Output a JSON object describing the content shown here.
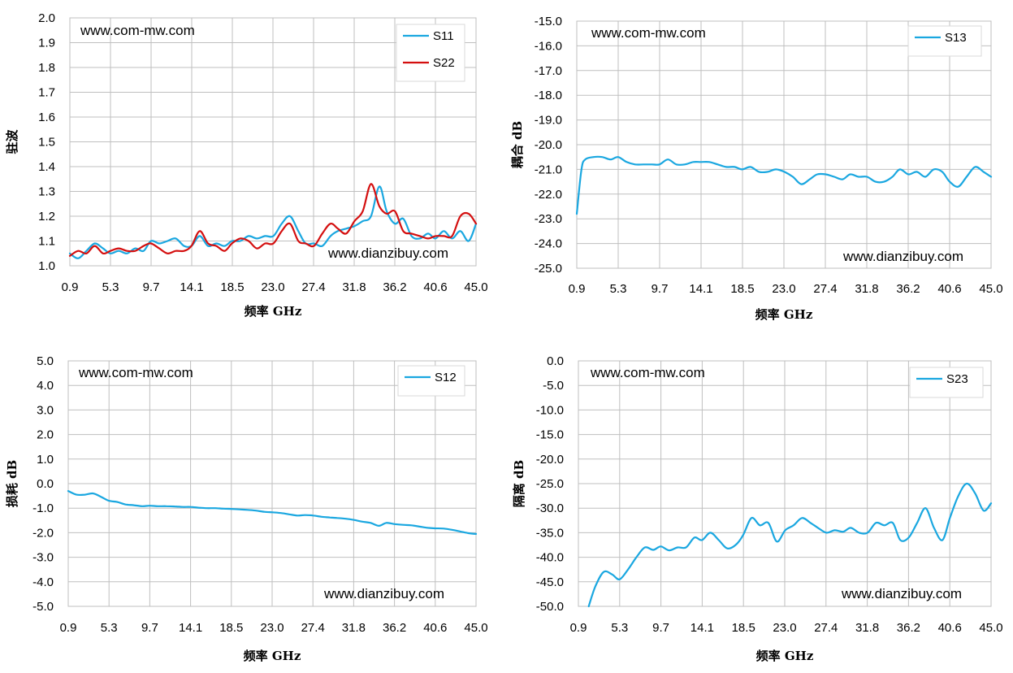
{
  "colors": {
    "blue": "#1aa7e0",
    "red": "#d40f0f",
    "grid": "#bfbfbf"
  },
  "chart_data": [
    {
      "id": "vswr",
      "type": "line",
      "title": "",
      "xlabel": "频率 GHz",
      "ylabel": "驻波",
      "xlim": [
        0.9,
        45.0
      ],
      "ylim": [
        1.0,
        2.0
      ],
      "x_ticks": [
        "0.9",
        "5.3",
        "9.7",
        "14.1",
        "18.5",
        "23.0",
        "27.4",
        "31.8",
        "36.2",
        "40.6",
        "45.0"
      ],
      "y_ticks": [
        "2.0",
        "1.9",
        "1.8",
        "1.7",
        "1.6",
        "1.5",
        "1.4",
        "1.3",
        "1.2",
        "1.1",
        "1.0"
      ],
      "watermark_top": "www.com-mw.com",
      "watermark_bottom": "www.dianzibuy.com",
      "legend": "top-right",
      "series": [
        {
          "name": "S11",
          "color": "#1aa7e0",
          "x": [
            0.9,
            1.8,
            2.7,
            3.6,
            4.5,
            5.3,
            6.2,
            7.1,
            8.0,
            8.9,
            9.7,
            10.6,
            11.5,
            12.4,
            13.3,
            14.1,
            15.0,
            15.9,
            16.8,
            17.7,
            18.5,
            19.4,
            20.3,
            21.2,
            22.1,
            23.0,
            23.9,
            24.8,
            25.7,
            26.5,
            27.4,
            28.3,
            29.2,
            30.0,
            30.9,
            31.8,
            32.7,
            33.6,
            34.5,
            35.3,
            36.2,
            37.1,
            38.0,
            38.9,
            39.8,
            40.6,
            41.5,
            42.4,
            43.3,
            44.2,
            45.0
          ],
          "y": [
            1.05,
            1.03,
            1.06,
            1.09,
            1.07,
            1.05,
            1.06,
            1.05,
            1.07,
            1.06,
            1.1,
            1.09,
            1.1,
            1.11,
            1.08,
            1.08,
            1.12,
            1.08,
            1.09,
            1.08,
            1.1,
            1.1,
            1.12,
            1.11,
            1.12,
            1.12,
            1.17,
            1.2,
            1.14,
            1.09,
            1.09,
            1.08,
            1.12,
            1.14,
            1.15,
            1.16,
            1.18,
            1.2,
            1.32,
            1.22,
            1.17,
            1.19,
            1.12,
            1.11,
            1.13,
            1.11,
            1.14,
            1.11,
            1.14,
            1.1,
            1.17
          ]
        },
        {
          "name": "S22",
          "color": "#d40f0f",
          "x": [
            0.9,
            1.8,
            2.7,
            3.6,
            4.5,
            5.3,
            6.2,
            7.1,
            8.0,
            8.9,
            9.7,
            10.6,
            11.5,
            12.4,
            13.3,
            14.1,
            15.0,
            15.9,
            16.8,
            17.7,
            18.5,
            19.4,
            20.3,
            21.2,
            22.1,
            23.0,
            23.9,
            24.8,
            25.7,
            26.5,
            27.4,
            28.3,
            29.2,
            30.0,
            30.9,
            31.8,
            32.7,
            33.6,
            34.5,
            35.3,
            36.2,
            37.1,
            38.0,
            38.9,
            39.8,
            40.6,
            41.5,
            42.4,
            43.3,
            44.2,
            45.0
          ],
          "y": [
            1.04,
            1.06,
            1.05,
            1.08,
            1.05,
            1.06,
            1.07,
            1.06,
            1.06,
            1.08,
            1.09,
            1.07,
            1.05,
            1.06,
            1.06,
            1.08,
            1.14,
            1.09,
            1.08,
            1.06,
            1.09,
            1.11,
            1.1,
            1.07,
            1.09,
            1.09,
            1.14,
            1.17,
            1.1,
            1.09,
            1.08,
            1.13,
            1.17,
            1.15,
            1.13,
            1.18,
            1.22,
            1.33,
            1.24,
            1.21,
            1.22,
            1.14,
            1.13,
            1.12,
            1.11,
            1.12,
            1.12,
            1.12,
            1.2,
            1.21,
            1.17
          ]
        }
      ]
    },
    {
      "id": "coupling",
      "type": "line",
      "title": "",
      "xlabel": "频率 GHz",
      "ylabel": "耦合 dB",
      "xlim": [
        0.9,
        45.0
      ],
      "ylim": [
        -25.0,
        -15.0
      ],
      "x_ticks": [
        "0.9",
        "5.3",
        "9.7",
        "14.1",
        "18.5",
        "23.0",
        "27.4",
        "31.8",
        "36.2",
        "40.6",
        "45.0"
      ],
      "y_ticks": [
        "-15.0",
        "-16.0",
        "-17.0",
        "-18.0",
        "-19.0",
        "-20.0",
        "-21.0",
        "-22.0",
        "-23.0",
        "-24.0",
        "-25.0"
      ],
      "watermark_top": "www.com-mw.com",
      "watermark_bottom": "www.dianzibuy.com",
      "legend": "top-right",
      "series": [
        {
          "name": "S13",
          "color": "#1aa7e0",
          "x": [
            0.9,
            1.4,
            1.8,
            2.7,
            3.6,
            4.5,
            5.3,
            6.2,
            7.1,
            8.0,
            8.9,
            9.7,
            10.6,
            11.5,
            12.4,
            13.3,
            14.1,
            15.0,
            15.9,
            16.8,
            17.7,
            18.5,
            19.4,
            20.3,
            21.2,
            22.1,
            23.0,
            23.9,
            24.8,
            25.7,
            26.5,
            27.4,
            28.3,
            29.2,
            30.0,
            30.9,
            31.8,
            32.7,
            33.6,
            34.5,
            35.3,
            36.2,
            37.1,
            38.0,
            38.9,
            39.8,
            40.6,
            41.5,
            42.4,
            43.3,
            44.2,
            45.0
          ],
          "y": [
            -22.8,
            -21.0,
            -20.6,
            -20.5,
            -20.5,
            -20.6,
            -20.5,
            -20.7,
            -20.8,
            -20.8,
            -20.8,
            -20.8,
            -20.6,
            -20.8,
            -20.8,
            -20.7,
            -20.7,
            -20.7,
            -20.8,
            -20.9,
            -20.9,
            -21.0,
            -20.9,
            -21.1,
            -21.1,
            -21.0,
            -21.1,
            -21.3,
            -21.6,
            -21.4,
            -21.2,
            -21.2,
            -21.3,
            -21.4,
            -21.2,
            -21.3,
            -21.3,
            -21.5,
            -21.5,
            -21.3,
            -21.0,
            -21.2,
            -21.1,
            -21.3,
            -21.0,
            -21.1,
            -21.5,
            -21.7,
            -21.3,
            -20.9,
            -21.1,
            -21.3
          ]
        }
      ]
    },
    {
      "id": "insertion-loss",
      "type": "line",
      "title": "",
      "xlabel": "频率 GHz",
      "ylabel": "损耗 dB",
      "xlim": [
        0.9,
        45.0
      ],
      "ylim": [
        -5.0,
        5.0
      ],
      "x_ticks": [
        "0.9",
        "5.3",
        "9.7",
        "14.1",
        "18.5",
        "23.0",
        "27.4",
        "31.8",
        "36.2",
        "40.6",
        "45.0"
      ],
      "y_ticks": [
        "5.0",
        "4.0",
        "3.0",
        "2.0",
        "1.0",
        "0.0",
        "-1.0",
        "-2.0",
        "-3.0",
        "-4.0",
        "-5.0"
      ],
      "watermark_top": "www.com-mw.com",
      "watermark_bottom": "www.dianzibuy.com",
      "legend": "top-right",
      "series": [
        {
          "name": "S12",
          "color": "#1aa7e0",
          "x": [
            0.9,
            1.8,
            2.7,
            3.6,
            4.5,
            5.3,
            6.2,
            7.1,
            8.0,
            8.9,
            9.7,
            10.6,
            11.5,
            12.4,
            13.3,
            14.1,
            15.0,
            15.9,
            16.8,
            17.7,
            18.5,
            19.4,
            20.3,
            21.2,
            22.1,
            23.0,
            23.9,
            24.8,
            25.7,
            26.5,
            27.4,
            28.3,
            29.2,
            30.0,
            30.9,
            31.8,
            32.7,
            33.6,
            34.5,
            35.3,
            36.2,
            37.1,
            38.0,
            38.9,
            39.8,
            40.6,
            41.5,
            42.4,
            43.3,
            44.2,
            45.0
          ],
          "y": [
            -0.3,
            -0.45,
            -0.45,
            -0.4,
            -0.55,
            -0.7,
            -0.75,
            -0.85,
            -0.88,
            -0.92,
            -0.9,
            -0.92,
            -0.92,
            -0.93,
            -0.95,
            -0.95,
            -0.98,
            -1.0,
            -1.0,
            -1.02,
            -1.03,
            -1.05,
            -1.07,
            -1.1,
            -1.15,
            -1.17,
            -1.2,
            -1.25,
            -1.3,
            -1.28,
            -1.3,
            -1.35,
            -1.38,
            -1.4,
            -1.43,
            -1.48,
            -1.55,
            -1.6,
            -1.72,
            -1.6,
            -1.65,
            -1.68,
            -1.7,
            -1.75,
            -1.8,
            -1.82,
            -1.83,
            -1.88,
            -1.95,
            -2.02,
            -2.05
          ]
        }
      ]
    },
    {
      "id": "isolation",
      "type": "line",
      "title": "",
      "xlabel": "频率 GHz",
      "ylabel": "隔离 dB",
      "xlim": [
        0.9,
        45.0
      ],
      "ylim": [
        -50.0,
        0.0
      ],
      "x_ticks": [
        "0.9",
        "5.3",
        "9.7",
        "14.1",
        "18.5",
        "23.0",
        "27.4",
        "31.8",
        "36.2",
        "40.6",
        "45.0"
      ],
      "y_ticks": [
        "0.0",
        "-5.0",
        "-10.0",
        "-15.0",
        "-20.0",
        "-25.0",
        "-30.0",
        "-35.0",
        "-40.0",
        "-45.0",
        "-50.0"
      ],
      "watermark_top": "www.com-mw.com",
      "watermark_bottom": "www.dianzibuy.com",
      "legend": "top-right",
      "series": [
        {
          "name": "S23",
          "color": "#1aa7e0",
          "x": [
            2.0,
            2.7,
            3.6,
            4.5,
            5.3,
            6.2,
            7.1,
            8.0,
            8.9,
            9.7,
            10.6,
            11.5,
            12.4,
            13.3,
            14.1,
            15.0,
            15.9,
            16.8,
            17.7,
            18.5,
            19.4,
            20.3,
            21.2,
            22.1,
            23.0,
            23.9,
            24.8,
            25.7,
            26.5,
            27.4,
            28.3,
            29.2,
            30.0,
            30.9,
            31.8,
            32.7,
            33.6,
            34.5,
            35.3,
            36.2,
            37.1,
            38.0,
            38.9,
            39.8,
            40.6,
            41.5,
            42.4,
            43.3,
            44.2,
            45.0
          ],
          "y": [
            -50.0,
            -46.0,
            -43.0,
            -43.5,
            -44.5,
            -42.5,
            -40.0,
            -38.0,
            -38.5,
            -37.8,
            -38.6,
            -38.0,
            -38.0,
            -36.0,
            -36.5,
            -35.0,
            -36.5,
            -38.2,
            -37.5,
            -35.5,
            -32.0,
            -33.5,
            -33.0,
            -36.8,
            -34.5,
            -33.5,
            -32.0,
            -33.0,
            -34.0,
            -35.0,
            -34.5,
            -34.8,
            -34.0,
            -35.0,
            -35.0,
            -33.0,
            -33.5,
            -33.0,
            -36.5,
            -36.0,
            -33.0,
            -30.0,
            -34.0,
            -36.5,
            -32.0,
            -27.5,
            -25.0,
            -27.0,
            -30.5,
            -29.0
          ]
        }
      ]
    }
  ]
}
